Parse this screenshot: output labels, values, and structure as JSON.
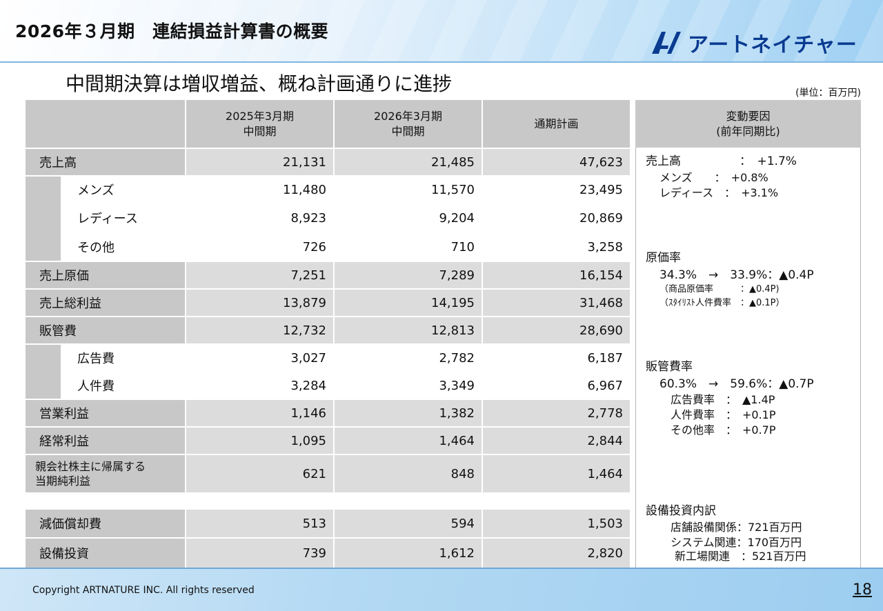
{
  "header": {
    "title": "2026年３月期　連結損益計算書の概要",
    "logo_text": "アートネイチャー"
  },
  "subtitle": "中間期決算は増収増益、概ね計画通りに進捗",
  "unit": "(単位：百万円)",
  "table": {
    "columns": [
      {
        "line1": "2025年3月期",
        "line2": "中間期"
      },
      {
        "line1": "2026年3月期",
        "line2": "中間期"
      },
      {
        "line1": "通期計画",
        "line2": ""
      }
    ],
    "rows": [
      {
        "label": "売上高",
        "values": [
          "21,131",
          "21,485",
          "47,623"
        ]
      },
      {
        "label": "メンズ",
        "values": [
          "11,480",
          "11,570",
          "23,495"
        ]
      },
      {
        "label": "レディース",
        "values": [
          "8,923",
          "9,204",
          "20,869"
        ]
      },
      {
        "label": "その他",
        "values": [
          "726",
          "710",
          "3,258"
        ]
      },
      {
        "label": "売上原価",
        "values": [
          "7,251",
          "7,289",
          "16,154"
        ]
      },
      {
        "label": "売上総利益",
        "values": [
          "13,879",
          "14,195",
          "31,468"
        ]
      },
      {
        "label": "販管費",
        "values": [
          "12,732",
          "12,813",
          "28,690"
        ]
      },
      {
        "label": "広告費",
        "values": [
          "3,027",
          "2,782",
          "6,187"
        ]
      },
      {
        "label": "人件費",
        "values": [
          "3,284",
          "3,349",
          "6,967"
        ]
      },
      {
        "label": "営業利益",
        "values": [
          "1,146",
          "1,382",
          "2,778"
        ]
      },
      {
        "label": "経常利益",
        "values": [
          "1,095",
          "1,464",
          "2,844"
        ]
      },
      {
        "label_line1": "親会社株主に帰属する",
        "label_line2": "当期純利益",
        "values": [
          "621",
          "848",
          "1,464"
        ]
      },
      {
        "label": "減価償却費",
        "values": [
          "513",
          "594",
          "1,503"
        ]
      },
      {
        "label": "設備投資",
        "values": [
          "739",
          "1,612",
          "2,820"
        ]
      }
    ]
  },
  "panel": {
    "header_line1": "変動要因",
    "header_line2": "(前年同期比)",
    "sales": {
      "title": "売上高",
      "value": "：　+1.7%",
      "mens": "メンズ　　：　+0.8%",
      "ladies": "レディース　：　+3.1%"
    },
    "cost": {
      "title": "原価率",
      "change": "34.3%　→　33.9%：▲0.4P",
      "item1": "（商品原価率　　　：▲0.4P)",
      "item2": "（ｽﾀｲﾘｽﾄ人件費率　：▲0.1P）"
    },
    "sga": {
      "title": "販管費率",
      "change": "60.3%　→　59.6%：▲0.7P",
      "item1": "広告費率　：　▲1.4P",
      "item2": "人件費率　：　+0.1P",
      "item3": "その他率　：　+0.7P"
    },
    "capex": {
      "title": "設備投資内訳",
      "item1": "店舗設備関係：721百万円",
      "item2": "システム関連：170百万円",
      "item3": "新工場関連　：521百万円"
    }
  },
  "footer": {
    "copyright": "Copyright ARTNATURE INC. All rights reserved",
    "page": "18"
  },
  "colors": {
    "header_gray": "#c8c8c8",
    "value_gray": "#dcdcdc",
    "logo_blue": "#0a3b91"
  }
}
